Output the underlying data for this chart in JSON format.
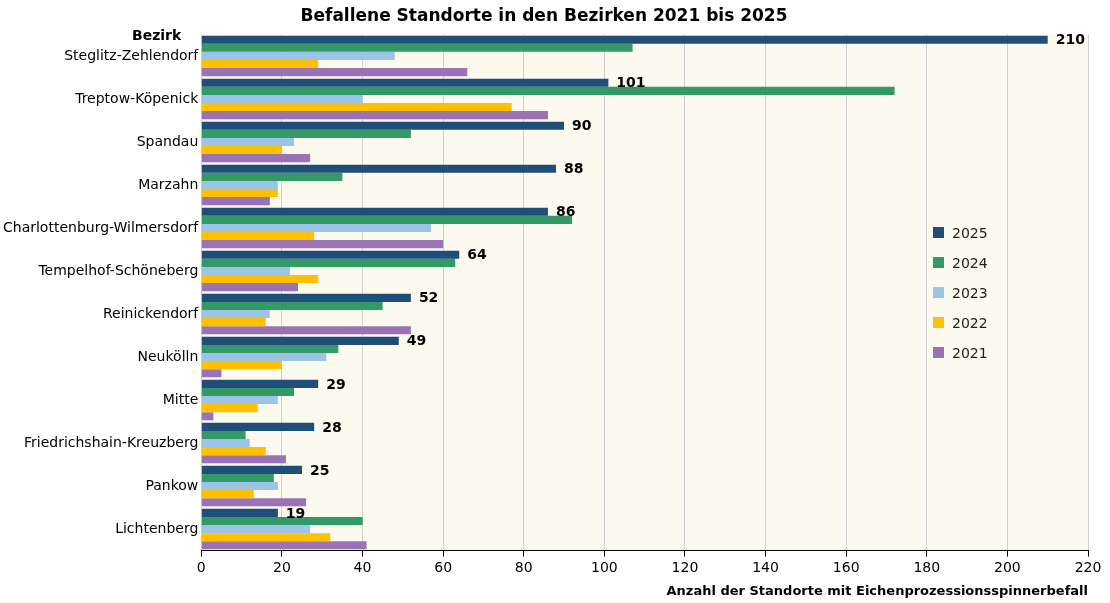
{
  "chart_data": {
    "type": "bar",
    "orientation": "horizontal",
    "title": "Befallene Standorte in den Bezirken 2021 bis 2025",
    "xlabel": "Anzahl der Standorte mit Eichenprozessionsspinnerbefall",
    "ylabel": "Bezirk",
    "categories": [
      "Steglitz-Zehlendorf",
      "Treptow-Köpenick",
      "Spandau",
      "Marzahn",
      "Charlottenburg-Wilmersdorf",
      "Tempelhof-Schöneberg",
      "Reinickendorf",
      "Neukölln",
      "Mitte",
      "Friedrichshain-Kreuzberg",
      "Pankow",
      "Lichtenberg"
    ],
    "series": [
      {
        "name": "2025",
        "color": "#1f4e79",
        "values": [
          210,
          101,
          90,
          88,
          86,
          64,
          52,
          49,
          29,
          28,
          25,
          19
        ],
        "value_labels": [
          "210",
          "101",
          "90",
          "88",
          "86",
          "64",
          "52",
          "49",
          "29",
          "28",
          "25",
          "19"
        ]
      },
      {
        "name": "2024",
        "color": "#339966",
        "values": [
          107,
          172,
          52,
          35,
          92,
          63,
          45,
          34,
          23,
          11,
          18,
          40
        ]
      },
      {
        "name": "2023",
        "color": "#9dc3e6",
        "values": [
          48,
          40,
          23,
          19,
          57,
          22,
          17,
          31,
          19,
          12,
          19,
          27
        ]
      },
      {
        "name": "2022",
        "color": "#ffc000",
        "values": [
          29,
          77,
          20,
          19,
          28,
          29,
          16,
          20,
          14,
          16,
          13,
          32
        ]
      },
      {
        "name": "2021",
        "color": "#9b72b6",
        "values": [
          66,
          86,
          27,
          17,
          60,
          24,
          52,
          5,
          3,
          21,
          26,
          41
        ]
      }
    ],
    "xlim": [
      0,
      220
    ],
    "xticks": [
      0,
      20,
      40,
      60,
      80,
      100,
      120,
      140,
      160,
      180,
      200,
      220
    ],
    "grid": "x",
    "legend": "center right"
  }
}
